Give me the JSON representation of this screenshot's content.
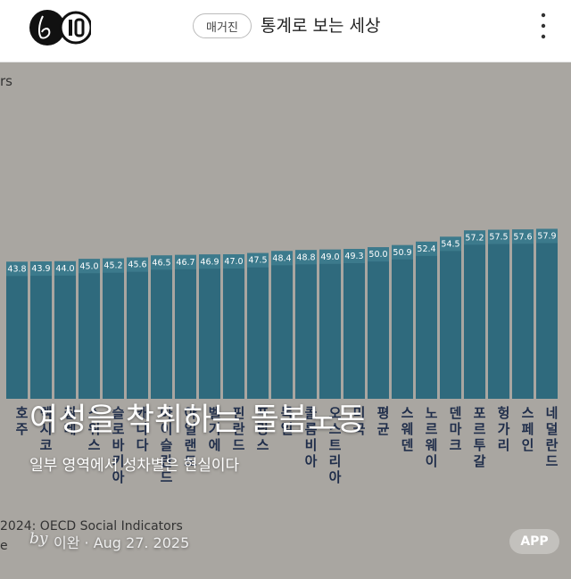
{
  "header": {
    "magazine_button": "매거진",
    "magazine_title": "통계로 보는 세상"
  },
  "cover": {
    "title": "여성을 착취하는 돌봄노동",
    "subtitle": "일부 영역에서 성차별은 현실이다",
    "byline_prefix": "by",
    "byline": "이완 · Aug 27. 2025",
    "app_button": "APP"
  },
  "chart_data": {
    "type": "bar",
    "fragment_label": "rs",
    "source": "2024: OECD Social Indicators",
    "source_suffix": "e",
    "categories": [
      "호주",
      "멕시코",
      "칠레",
      "스위스",
      "슬로바키아",
      "캐나다",
      "아이슬란드",
      "아일랜드",
      "벨기에",
      "핀란드",
      "프랑스",
      "독일",
      "콜롬비아",
      "오스트리아",
      "미국",
      "평균",
      "스웨덴",
      "노르웨이",
      "덴마크",
      "포르투갈",
      "헝가리",
      "스페인",
      "네덜란드"
    ],
    "values": [
      43.8,
      43.9,
      44.0,
      45.0,
      45.2,
      45.6,
      46.5,
      46.7,
      46.9,
      47.0,
      47.5,
      48.4,
      48.8,
      49.0,
      49.3,
      50.0,
      50.9,
      52.4,
      54.5,
      57.2,
      57.5,
      57.6,
      57.9
    ],
    "value_labels": [
      "43.8",
      "43.9",
      "44.0",
      "45.0",
      "45.2",
      "45.6",
      "46.5",
      "46.7",
      "46.9",
      "47.0",
      "47.5",
      "48.4",
      "48.8",
      "49.0",
      "49.3",
      "50.0",
      "50.9",
      "52.4",
      "54.5",
      "57.2",
      "57.5",
      "57.6",
      "57.9"
    ],
    "color": "#2f6a7d",
    "ylim": [
      0,
      60
    ]
  }
}
